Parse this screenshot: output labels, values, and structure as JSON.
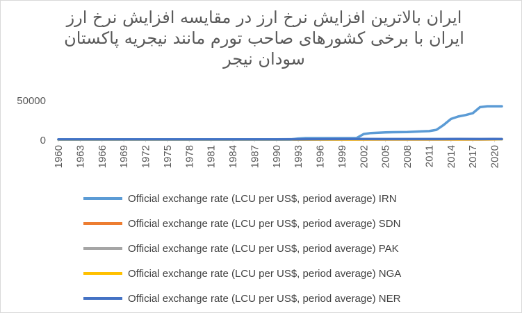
{
  "chart_data": {
    "type": "line",
    "title_lines": [
      "ایران بالاترین افزایش نرخ ارز در مقایسه افزایش نرخ ارز",
      "ایران با برخی کشورهای صاحب تورم مانند نیجریه پاکستان",
      "سودان نیجر"
    ],
    "x_tick_labels": [
      "1960",
      "1963",
      "1966",
      "1969",
      "1972",
      "1975",
      "1978",
      "1981",
      "1984",
      "1987",
      "1990",
      "1993",
      "1996",
      "1999",
      "2002",
      "2005",
      "2008",
      "2011",
      "2014",
      "2017",
      "2020"
    ],
    "y_tick_labels": [
      "0",
      "50000"
    ],
    "ylim": [
      0,
      50000
    ],
    "xlim": [
      1960,
      2021
    ],
    "gridlines": false,
    "legend_position": "bottom",
    "series": [
      {
        "name": "Official exchange rate (LCU per US$, period average) IRN",
        "color": "#5b9bd5",
        "x": [
          1960,
          1970,
          1980,
          1990,
          1991,
          1992,
          1993,
          1994,
          1995,
          1996,
          1997,
          1998,
          1999,
          2000,
          2001,
          2002,
          2003,
          2004,
          2005,
          2006,
          2007,
          2008,
          2009,
          2010,
          2011,
          2012,
          2013,
          2014,
          2015,
          2016,
          2017,
          2018,
          2019,
          2020,
          2021
        ],
        "values": [
          75,
          76,
          71,
          68,
          68,
          65,
          1268,
          1748,
          1748,
          1750,
          1753,
          1752,
          1764,
          1765,
          1754,
          6907,
          8194,
          8614,
          8964,
          9171,
          9281,
          9429,
          9864,
          10254,
          10616,
          12176,
          18414,
          25942,
          29011,
          30915,
          33226,
          40864,
          42000,
          42000,
          42000
        ]
      },
      {
        "name": "Official exchange rate (LCU per US$, period average) SDN",
        "color": "#ed7d31",
        "x": [
          1960,
          1970,
          1980,
          1990,
          2000,
          2005,
          2010,
          2015,
          2018,
          2020,
          2021
        ],
        "values": [
          0,
          0,
          0,
          0,
          3,
          2,
          2,
          6,
          25,
          54,
          370
        ]
      },
      {
        "name": "Official exchange rate (LCU per US$, period average) PAK",
        "color": "#a5a5a5",
        "x": [
          1960,
          1970,
          1980,
          1990,
          2000,
          2005,
          2010,
          2015,
          2018,
          2020,
          2021
        ],
        "values": [
          5,
          5,
          10,
          22,
          53,
          60,
          85,
          102,
          122,
          161,
          163
        ]
      },
      {
        "name": "Official exchange rate (LCU per US$, period average) NGA",
        "color": "#ffc000",
        "x": [
          1960,
          1970,
          1980,
          1990,
          2000,
          2005,
          2010,
          2015,
          2018,
          2020,
          2021
        ],
        "values": [
          1,
          1,
          1,
          8,
          102,
          132,
          150,
          193,
          306,
          358,
          402
        ]
      },
      {
        "name": "Official exchange rate (LCU per US$, period average) NER",
        "color": "#4472c4",
        "x": [
          1960,
          1970,
          1980,
          1990,
          2000,
          2005,
          2010,
          2015,
          2018,
          2020,
          2021
        ],
        "values": [
          246,
          277,
          211,
          272,
          712,
          527,
          495,
          591,
          555,
          575,
          554
        ]
      }
    ]
  }
}
